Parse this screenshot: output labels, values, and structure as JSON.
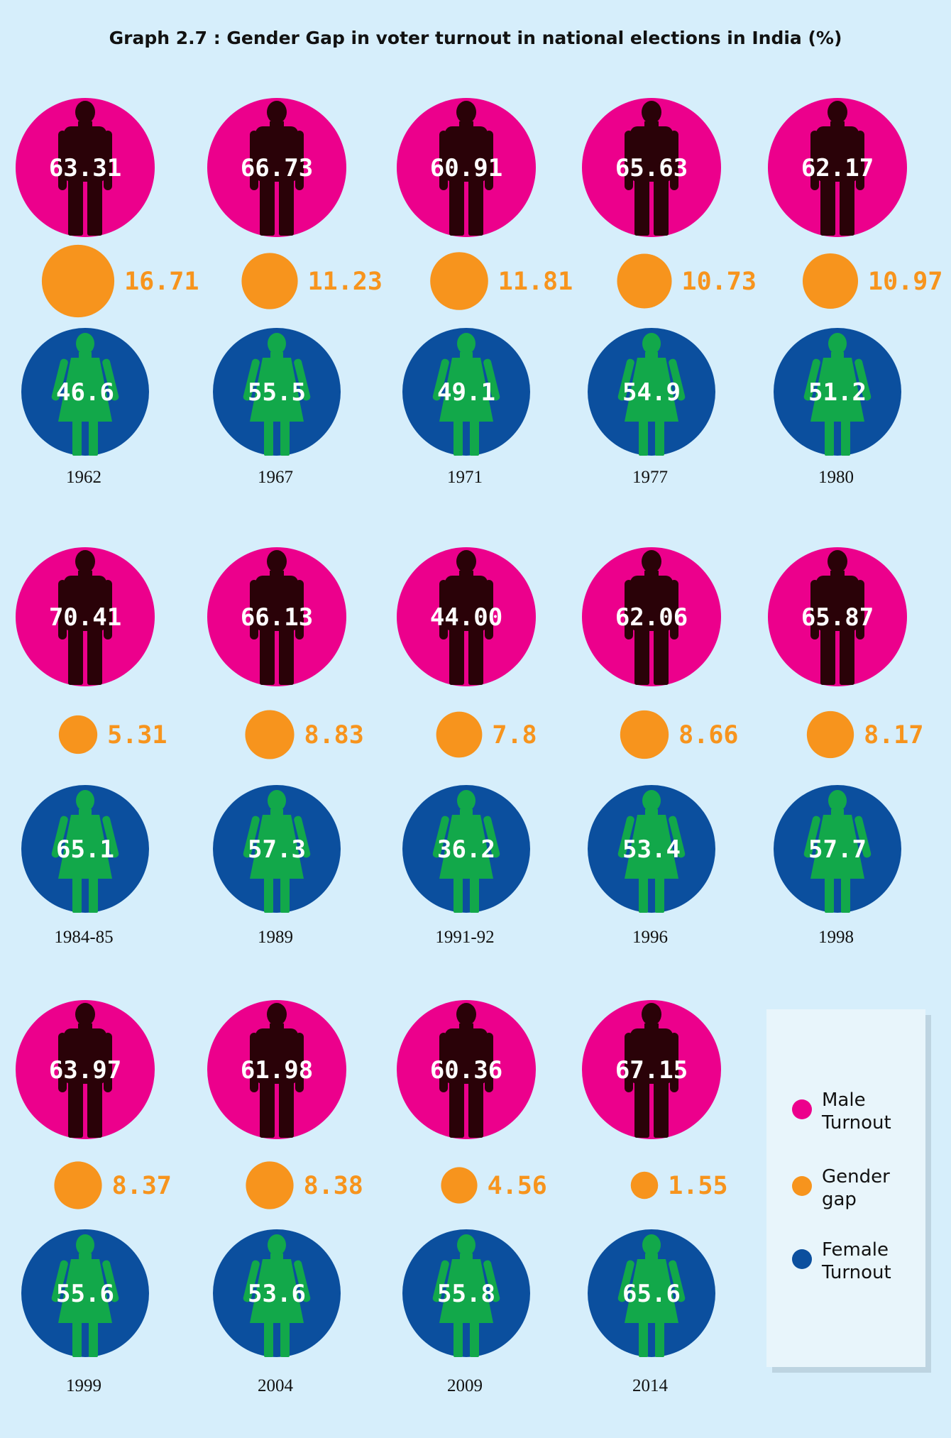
{
  "colors": {
    "background": "#d6eefb",
    "male_circle": "#ec008c",
    "male_figure": "#2a0208",
    "gap_circle": "#f7941d",
    "gap_text": "#f7941d",
    "female_circle": "#0b4f9e",
    "female_figure": "#12a84a",
    "value_text": "#ffffff",
    "legend_bg": "#e8f5fb"
  },
  "icons": {
    "male": "man-figure-icon",
    "female": "woman-figure-icon"
  },
  "chart_data": {
    "type": "pictogram",
    "title": "Graph 2.7 : Gender Gap in voter turnout in national elections in India (%)",
    "categories": [
      "1962",
      "1967",
      "1971",
      "1977",
      "1980",
      "1984-85",
      "1989",
      "1991-92",
      "1996",
      "1998",
      "1999",
      "2004",
      "2009",
      "2014"
    ],
    "series": [
      {
        "name": "Male Turnout",
        "values": [
          "63.31",
          "66.73",
          "60.91",
          "65.63",
          "62.17",
          "70.41",
          "66.13",
          "44.00",
          "62.06",
          "65.87",
          "63.97",
          "61.98",
          "60.36",
          "67.15"
        ]
      },
      {
        "name": "Gender gap",
        "values": [
          "16.71",
          "11.23",
          "11.81",
          "10.73",
          "10.97",
          "5.31",
          "8.83",
          "7.8",
          "8.66",
          "8.17",
          "8.37",
          "8.38",
          "4.56",
          "1.55"
        ]
      },
      {
        "name": "Female Turnout",
        "values": [
          "46.6",
          "55.5",
          "49.1",
          "54.9",
          "51.2",
          "65.1",
          "57.3",
          "36.2",
          "53.4",
          "57.7",
          "55.6",
          "53.6",
          "55.8",
          "65.6"
        ]
      }
    ],
    "legend": {
      "position": "bottom-right",
      "items": [
        {
          "lines": [
            "Male",
            "Turnout"
          ],
          "color": "#ec008c"
        },
        {
          "lines": [
            "Gender",
            "gap"
          ],
          "color": "#f7941d"
        },
        {
          "lines": [
            "Female",
            "Turnout"
          ],
          "color": "#0b4f9e"
        }
      ]
    }
  }
}
